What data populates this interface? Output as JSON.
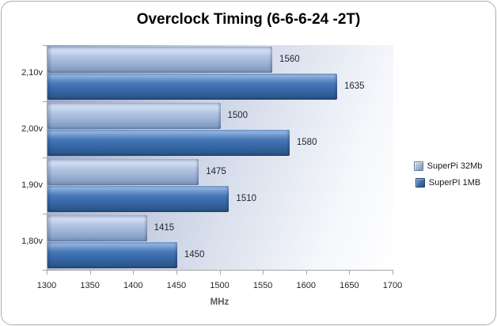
{
  "title": "Overclock Timing (6-6-6-24 -2T)",
  "chart_data": {
    "type": "bar",
    "orientation": "horizontal",
    "title": "Overclock Timing (6-6-6-24 -2T)",
    "categories": [
      "2,10v",
      "2,00v",
      "1,90v",
      "1,80v"
    ],
    "series": [
      {
        "name": "SuperPi 32Mb",
        "values": [
          1560,
          1500,
          1475,
          1415
        ]
      },
      {
        "name": "SuperPI 1MB",
        "values": [
          1635,
          1580,
          1510,
          1450
        ]
      }
    ],
    "xlabel": "MHz",
    "ylabel": "",
    "xlim": [
      1300,
      1700
    ],
    "xticks": [
      1300,
      1350,
      1400,
      1450,
      1500,
      1550,
      1600,
      1650,
      1700
    ],
    "grid": false,
    "data_labels": true,
    "legend_position": "right"
  },
  "colors": {
    "series1_fill": "#a9bede",
    "series2_fill": "#3a6cac",
    "plot_bg_start": "#96a1bd",
    "plot_bg_end": "#ffffff",
    "axis_line": "#a6a6a6",
    "tick_text": "#262626",
    "value_label_text": "#1f2430",
    "x_axis_title_text": "#595959",
    "title_text": "#000000",
    "frame_border": "#adadad",
    "background": "#ffffff"
  }
}
